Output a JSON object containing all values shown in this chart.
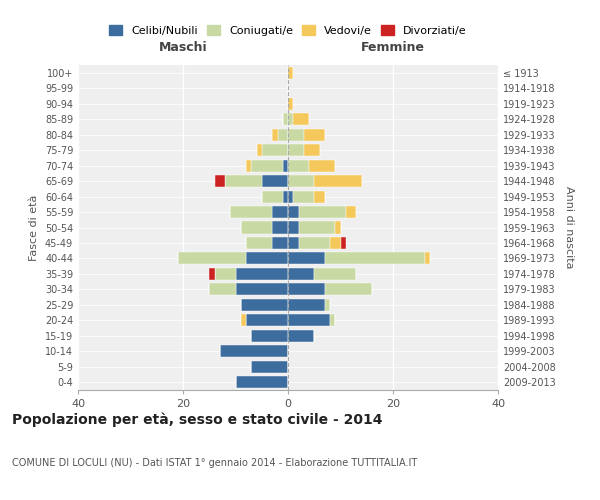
{
  "age_groups": [
    "0-4",
    "5-9",
    "10-14",
    "15-19",
    "20-24",
    "25-29",
    "30-34",
    "35-39",
    "40-44",
    "45-49",
    "50-54",
    "55-59",
    "60-64",
    "65-69",
    "70-74",
    "75-79",
    "80-84",
    "85-89",
    "90-94",
    "95-99",
    "100+"
  ],
  "birth_years": [
    "2009-2013",
    "2004-2008",
    "1999-2003",
    "1994-1998",
    "1989-1993",
    "1984-1988",
    "1979-1983",
    "1974-1978",
    "1969-1973",
    "1964-1968",
    "1959-1963",
    "1954-1958",
    "1949-1953",
    "1944-1948",
    "1939-1943",
    "1934-1938",
    "1929-1933",
    "1924-1928",
    "1919-1923",
    "1914-1918",
    "≤ 1913"
  ],
  "male": {
    "celibi": [
      10,
      7,
      13,
      7,
      8,
      9,
      10,
      10,
      8,
      3,
      3,
      3,
      1,
      5,
      1,
      0,
      0,
      0,
      0,
      0,
      0
    ],
    "coniugati": [
      0,
      0,
      0,
      0,
      0,
      0,
      5,
      4,
      13,
      5,
      6,
      8,
      4,
      7,
      6,
      5,
      2,
      1,
      0,
      0,
      0
    ],
    "vedovi": [
      0,
      0,
      0,
      0,
      1,
      0,
      0,
      0,
      0,
      0,
      0,
      0,
      0,
      0,
      1,
      1,
      1,
      0,
      0,
      0,
      0
    ],
    "divorziati": [
      0,
      0,
      0,
      0,
      0,
      0,
      0,
      1,
      0,
      0,
      0,
      0,
      0,
      2,
      0,
      0,
      0,
      0,
      0,
      0,
      0
    ]
  },
  "female": {
    "nubili": [
      0,
      0,
      0,
      5,
      8,
      7,
      7,
      5,
      7,
      2,
      2,
      2,
      1,
      0,
      0,
      0,
      0,
      0,
      0,
      0,
      0
    ],
    "coniugate": [
      0,
      0,
      0,
      0,
      1,
      1,
      9,
      8,
      19,
      6,
      7,
      9,
      4,
      5,
      4,
      3,
      3,
      1,
      0,
      0,
      0
    ],
    "vedove": [
      0,
      0,
      0,
      0,
      0,
      0,
      0,
      0,
      1,
      2,
      1,
      2,
      2,
      9,
      5,
      3,
      4,
      3,
      1,
      0,
      1
    ],
    "divorziate": [
      0,
      0,
      0,
      0,
      0,
      0,
      0,
      0,
      0,
      1,
      0,
      0,
      0,
      0,
      0,
      0,
      0,
      0,
      0,
      0,
      0
    ]
  },
  "color_celibi": "#3d6d9e",
  "color_coniugati": "#c9d9a4",
  "color_vedovi": "#f5c85c",
  "color_divorziati": "#cc2222",
  "title": "Popolazione per età, sesso e stato civile - 2014",
  "subtitle": "COMUNE DI LOCULI (NU) - Dati ISTAT 1° gennaio 2014 - Elaborazione TUTTITALIA.IT",
  "xlabel_left": "Maschi",
  "xlabel_right": "Femmine",
  "ylabel_left": "Fasce di età",
  "ylabel_right": "Anni di nascita",
  "xlim": 40,
  "bg_color": "#ffffff",
  "plot_bg": "#efefef"
}
